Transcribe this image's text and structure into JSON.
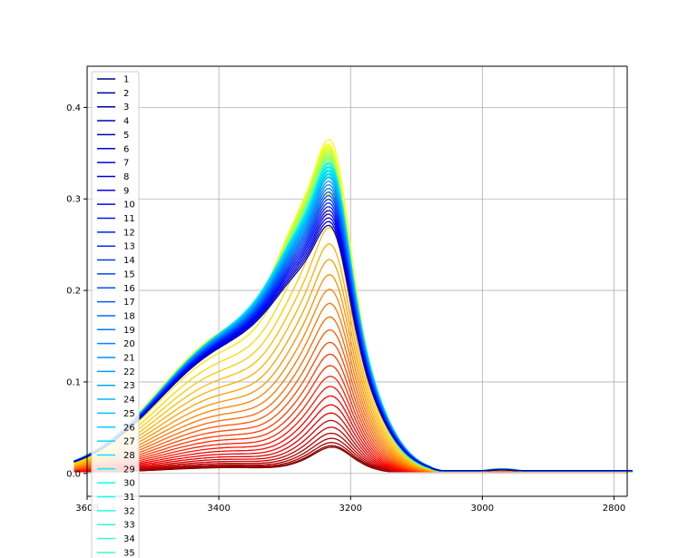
{
  "chart_data": {
    "type": "line",
    "title": "",
    "xlabel": "",
    "ylabel": "",
    "x_inverted": true,
    "xlim": [
      3600,
      2780
    ],
    "ylim": [
      -0.025,
      0.445
    ],
    "xticks": [
      3600,
      3400,
      3200,
      3000,
      2800
    ],
    "xtick_labels": [
      "3600",
      "3400",
      "3200",
      "3000",
      "2800"
    ],
    "yticks": [
      0.0,
      0.1,
      0.2,
      0.3,
      0.4
    ],
    "ytick_labels": [
      "0.0",
      "0.1",
      "0.2",
      "0.3",
      "0.4"
    ],
    "grid": true,
    "legend_position": "upper-left",
    "colormap": "jet",
    "legend_entries": [
      "1",
      "2",
      "3",
      "4",
      "5",
      "6",
      "7",
      "8",
      "9",
      "10",
      "11",
      "12",
      "13",
      "14",
      "15",
      "16",
      "17",
      "18",
      "19",
      "20",
      "21",
      "22",
      "23",
      "24",
      "25",
      "26",
      "27",
      "28",
      "29",
      "30",
      "31",
      "32",
      "33",
      "34",
      "35"
    ],
    "series_count": 64,
    "peak_position_cm1": 3230,
    "note_series_peak_heights_approx": [
      0.033,
      0.035,
      0.037,
      0.04,
      0.044,
      0.049,
      0.055,
      0.062,
      0.072,
      0.085,
      0.1,
      0.115,
      0.13,
      0.15,
      0.17,
      0.195,
      0.22,
      0.24,
      0.26,
      0.28,
      0.3,
      0.32,
      0.34,
      0.355,
      0.37,
      0.38,
      0.39,
      0.395,
      0.4,
      0.4
    ]
  }
}
